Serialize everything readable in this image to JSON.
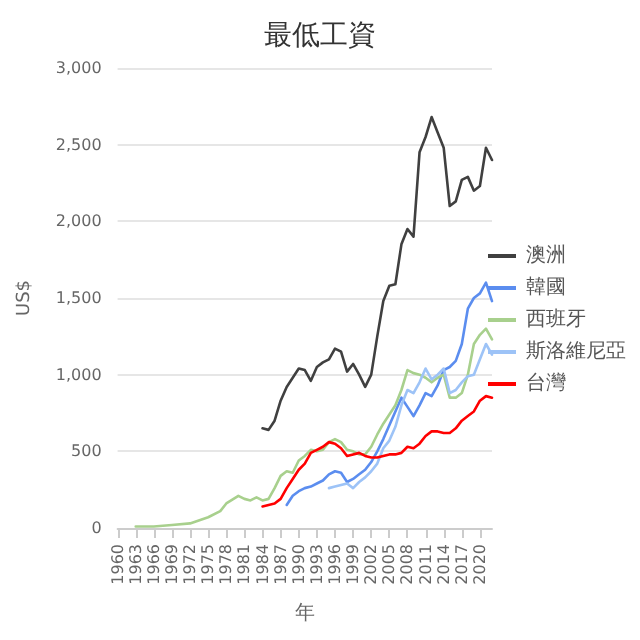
{
  "chart_data": {
    "type": "line",
    "title": "最低工資",
    "xlabel": "年",
    "ylabel": "US$",
    "xlim": [
      1960,
      2022
    ],
    "xticks": [
      1960,
      1963,
      1966,
      1969,
      1972,
      1975,
      1978,
      1981,
      1984,
      1987,
      1990,
      1993,
      1996,
      1999,
      2002,
      2005,
      2008,
      2011,
      2014,
      2017,
      2020
    ],
    "ylim": [
      0,
      3000
    ],
    "yticks": [
      0,
      500,
      {
        "value": 1000,
        "label": "1,000"
      },
      {
        "value": 1500,
        "label": "1,500"
      },
      {
        "value": 2000,
        "label": "2,000"
      },
      {
        "value": 2500,
        "label": "2,500"
      },
      {
        "value": 3000,
        "label": "3,000"
      }
    ],
    "grid": "y",
    "legend": "right",
    "marker": "none",
    "line_style": "solid",
    "series": [
      {
        "name": "澳洲",
        "color": "#404040",
        "x": [
          1984,
          1985,
          1986,
          1987,
          1988,
          1989,
          1990,
          1991,
          1992,
          1993,
          1994,
          1995,
          1996,
          1997,
          1998,
          1999,
          2000,
          2001,
          2002,
          2003,
          2004,
          2005,
          2006,
          2007,
          2008,
          2009,
          2010,
          2011,
          2012,
          2013,
          2014,
          2015,
          2016,
          2017,
          2018,
          2019,
          2020,
          2021,
          2022
        ],
        "values": [
          650,
          640,
          700,
          830,
          920,
          980,
          1040,
          1030,
          960,
          1050,
          1080,
          1100,
          1170,
          1150,
          1020,
          1070,
          1000,
          920,
          1000,
          1250,
          1480,
          1580,
          1590,
          1850,
          1950,
          1900,
          2450,
          2550,
          2680,
          2580,
          2480,
          2100,
          2130,
          2270,
          2290,
          2200,
          2230,
          2480,
          2400
        ]
      },
      {
        "name": "韓國",
        "color": "#5b8def",
        "x": [
          1988,
          1989,
          1990,
          1991,
          1992,
          1993,
          1994,
          1995,
          1996,
          1997,
          1998,
          1999,
          2000,
          2001,
          2002,
          2003,
          2004,
          2005,
          2006,
          2007,
          2008,
          2009,
          2010,
          2011,
          2012,
          2013,
          2014,
          2015,
          2016,
          2017,
          2018,
          2019,
          2020,
          2021,
          2022
        ],
        "values": [
          150,
          210,
          240,
          260,
          270,
          290,
          310,
          350,
          370,
          360,
          300,
          320,
          350,
          380,
          430,
          500,
          580,
          670,
          760,
          850,
          790,
          730,
          800,
          880,
          860,
          930,
          1030,
          1050,
          1090,
          1200,
          1430,
          1500,
          1530,
          1600,
          1480
        ]
      },
      {
        "name": "西班牙",
        "color": "#a8d08d",
        "x": [
          1963,
          1966,
          1969,
          1972,
          1975,
          1977,
          1978,
          1980,
          1981,
          1982,
          1983,
          1984,
          1985,
          1986,
          1987,
          1988,
          1989,
          1990,
          1991,
          1992,
          1993,
          1994,
          1995,
          1996,
          1997,
          1998,
          1999,
          2000,
          2001,
          2002,
          2003,
          2004,
          2005,
          2006,
          2007,
          2008,
          2009,
          2010,
          2011,
          2012,
          2013,
          2014,
          2015,
          2016,
          2017,
          2018,
          2019,
          2020,
          2021,
          2022
        ],
        "values": [
          10,
          10,
          20,
          30,
          70,
          110,
          160,
          210,
          190,
          180,
          200,
          180,
          190,
          260,
          340,
          370,
          360,
          440,
          470,
          510,
          500,
          510,
          560,
          580,
          560,
          510,
          500,
          480,
          480,
          530,
          610,
          680,
          740,
          800,
          900,
          1030,
          1010,
          1000,
          980,
          950,
          980,
          1000,
          850,
          850,
          880,
          1000,
          1200,
          1260,
          1300,
          1230
        ]
      },
      {
        "name": "斯洛維尼亞",
        "color": "#9dc3f7",
        "x": [
          1995,
          1996,
          1997,
          1998,
          1999,
          2000,
          2001,
          2002,
          2003,
          2004,
          2005,
          2006,
          2007,
          2008,
          2009,
          2010,
          2011,
          2012,
          2013,
          2014,
          2015,
          2016,
          2017,
          2018,
          2019,
          2020,
          2021,
          2022
        ],
        "values": [
          260,
          270,
          280,
          290,
          260,
          300,
          330,
          370,
          420,
          520,
          570,
          660,
          800,
          900,
          880,
          950,
          1040,
          970,
          1000,
          1040,
          880,
          900,
          950,
          990,
          1000,
          1100,
          1200,
          1130
        ]
      },
      {
        "name": "台灣",
        "color": "#ff0000",
        "x": [
          1984,
          1985,
          1986,
          1987,
          1988,
          1989,
          1990,
          1991,
          1992,
          1993,
          1994,
          1995,
          1996,
          1997,
          1998,
          1999,
          2000,
          2001,
          2002,
          2003,
          2004,
          2005,
          2006,
          2007,
          2008,
          2009,
          2010,
          2011,
          2012,
          2013,
          2014,
          2015,
          2016,
          2017,
          2018,
          2019,
          2020,
          2021,
          2022
        ],
        "values": [
          140,
          150,
          160,
          190,
          260,
          320,
          380,
          420,
          490,
          510,
          530,
          560,
          550,
          520,
          470,
          480,
          490,
          470,
          460,
          460,
          470,
          480,
          480,
          490,
          530,
          520,
          550,
          600,
          630,
          630,
          620,
          620,
          650,
          700,
          730,
          760,
          830,
          860,
          850
        ]
      }
    ]
  }
}
